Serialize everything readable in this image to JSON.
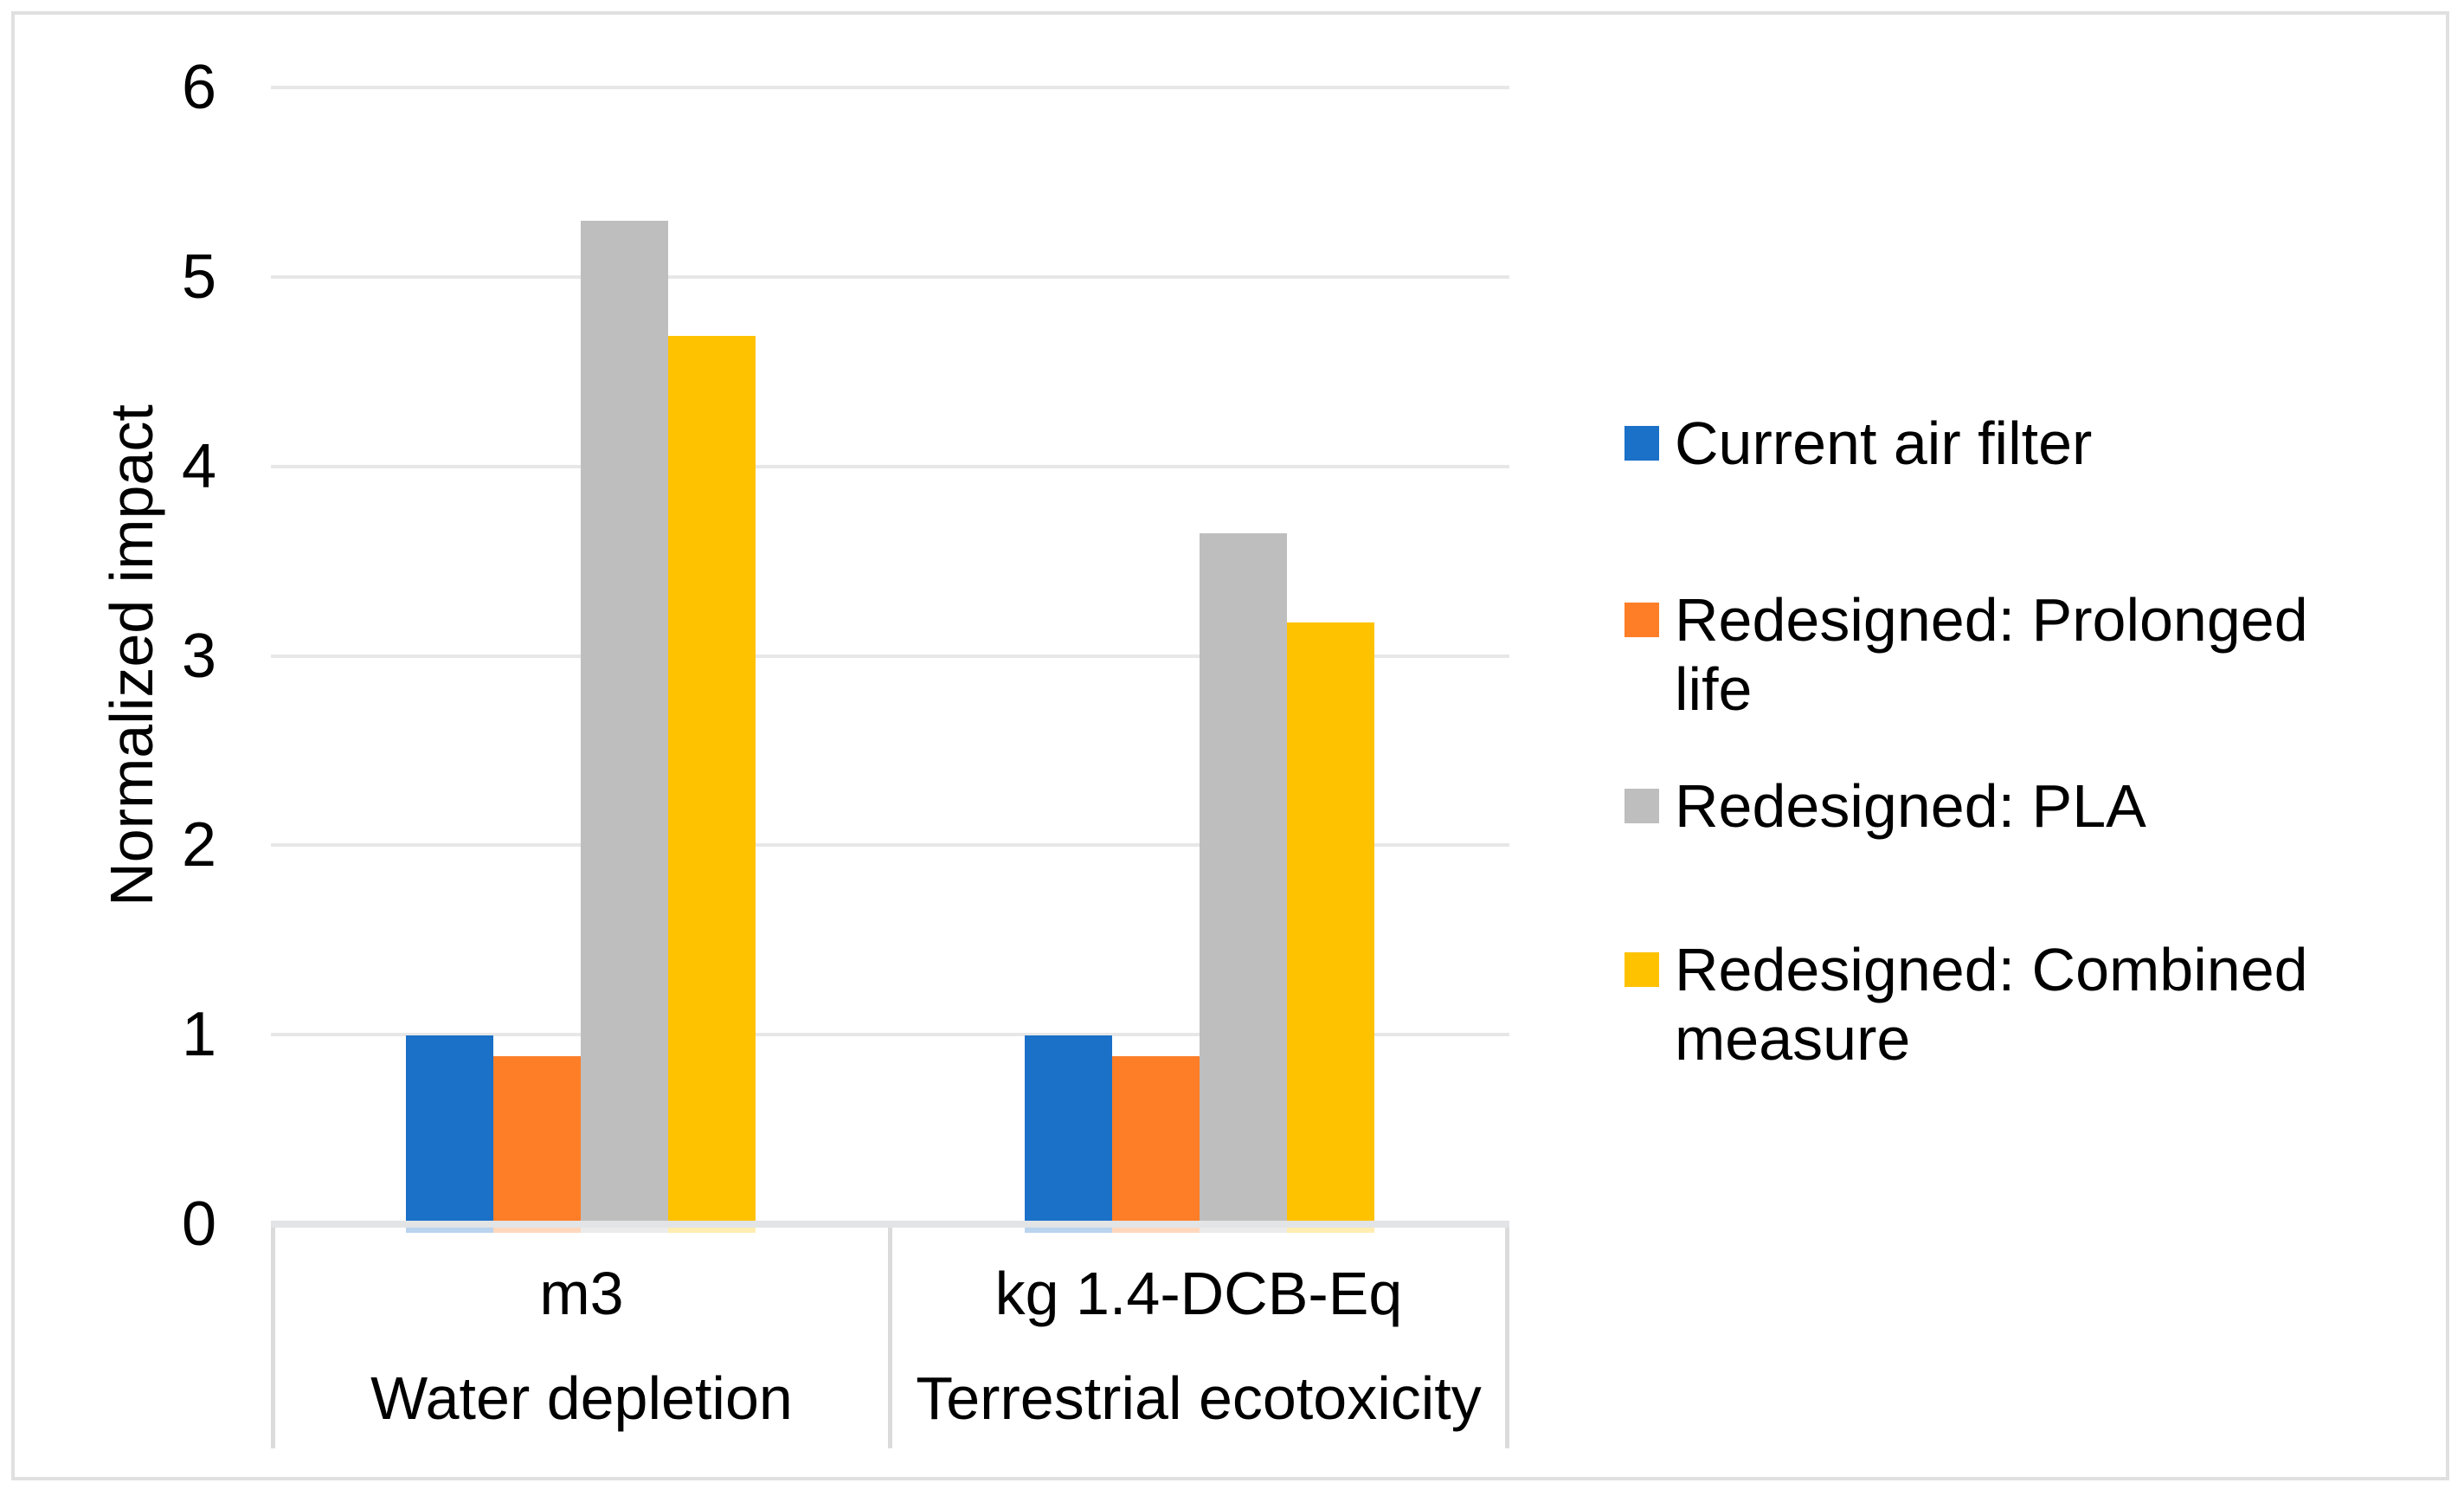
{
  "chart_data": {
    "type": "bar",
    "title": "",
    "ylabel": "Normalized impact",
    "ylim": [
      0,
      6
    ],
    "yticks": [
      0,
      1,
      2,
      3,
      4,
      5,
      6
    ],
    "grid": true,
    "legend_position": "right",
    "categories": [
      "Water depletion",
      "Terrestrial ecotoxicity"
    ],
    "category_units": [
      "m3",
      "kg 1.4-DCB-Eq"
    ],
    "series": [
      {
        "name": "Current air filter",
        "color": "#1B70C7",
        "values": [
          0.98,
          0.98
        ]
      },
      {
        "name": "Redesigned: Prolonged life",
        "color": "#FD7E27",
        "values": [
          0.87,
          0.87
        ]
      },
      {
        "name": "Redesigned: PLA",
        "color": "#BEBEBE",
        "values": [
          5.28,
          3.63
        ]
      },
      {
        "name": "Redesigned: Combined measure",
        "color": "#FFC200",
        "values": [
          4.67,
          3.16
        ]
      }
    ]
  },
  "colors": {
    "gridline": "#E7E7E7",
    "axis_line": "#E2E4E6",
    "table_border": "#DBDBDB",
    "frame_border": "#E0E0E0",
    "text": "#000000",
    "background": "#FFFFFF"
  }
}
